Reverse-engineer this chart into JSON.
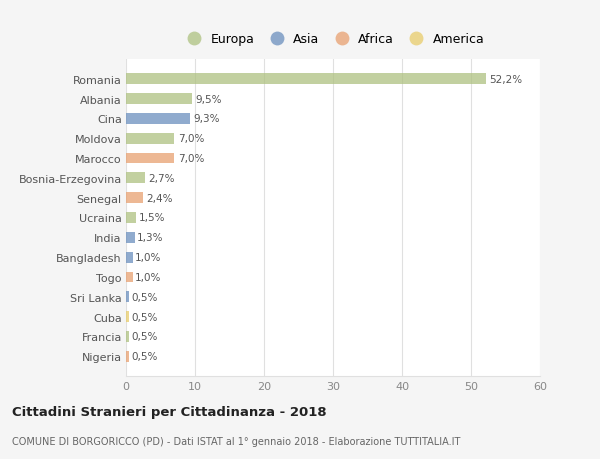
{
  "countries": [
    "Romania",
    "Albania",
    "Cina",
    "Moldova",
    "Marocco",
    "Bosnia-Erzegovina",
    "Senegal",
    "Ucraina",
    "India",
    "Bangladesh",
    "Togo",
    "Sri Lanka",
    "Cuba",
    "Francia",
    "Nigeria"
  ],
  "values": [
    52.2,
    9.5,
    9.3,
    7.0,
    7.0,
    2.7,
    2.4,
    1.5,
    1.3,
    1.0,
    1.0,
    0.5,
    0.5,
    0.5,
    0.5
  ],
  "labels": [
    "52,2%",
    "9,5%",
    "9,3%",
    "7,0%",
    "7,0%",
    "2,7%",
    "2,4%",
    "1,5%",
    "1,3%",
    "1,0%",
    "1,0%",
    "0,5%",
    "0,5%",
    "0,5%",
    "0,5%"
  ],
  "continents": [
    "Europa",
    "Europa",
    "Asia",
    "Europa",
    "Africa",
    "Europa",
    "Africa",
    "Europa",
    "Asia",
    "Asia",
    "Africa",
    "Asia",
    "America",
    "Europa",
    "Africa"
  ],
  "colors": {
    "Europa": "#aec180",
    "Asia": "#6b8fbe",
    "Africa": "#e8a070",
    "America": "#e8cc6a"
  },
  "legend_order": [
    "Europa",
    "Asia",
    "Africa",
    "America"
  ],
  "title": "Cittadini Stranieri per Cittadinanza - 2018",
  "subtitle": "COMUNE DI BORGORICCO (PD) - Dati ISTAT al 1° gennaio 2018 - Elaborazione TUTTITALIA.IT",
  "xlim": [
    0,
    60
  ],
  "xticks": [
    0,
    10,
    20,
    30,
    40,
    50,
    60
  ],
  "fig_bg": "#f5f5f5",
  "plot_bg": "#ffffff",
  "grid_color": "#e0e0e0",
  "bar_alpha": 0.75,
  "bar_height": 0.55
}
